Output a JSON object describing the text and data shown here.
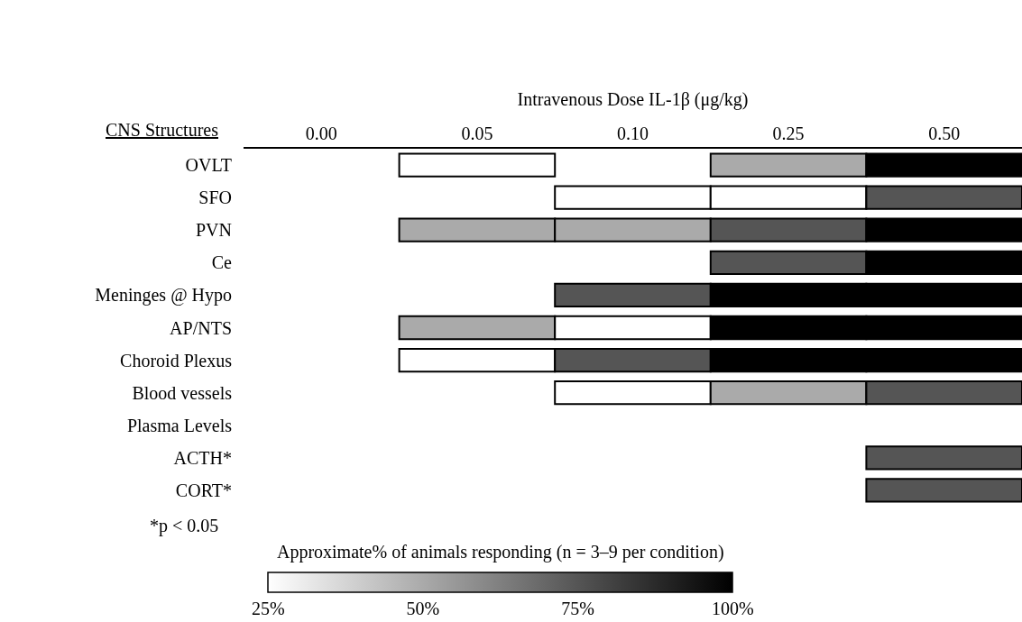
{
  "chart_data": {
    "type": "heatmap",
    "xlabel": "Intravenous Dose IL-1β (μg/kg)",
    "ylabel": "CNS Structures",
    "categories": [
      "0.00",
      "0.05",
      "0.10",
      "0.25",
      "0.50"
    ],
    "y_categories": [
      "OVLT",
      "SFO",
      "PVN",
      "Ce",
      "Meninges @ Hypo",
      "AP/NTS",
      "Choroid Plexus",
      "Blood vessels",
      "Plasma Levels",
      "ACTH*",
      "CORT*"
    ],
    "cells": [
      [
        null,
        25,
        null,
        50,
        100
      ],
      [
        null,
        null,
        25,
        25,
        75
      ],
      [
        null,
        50,
        50,
        75,
        100
      ],
      [
        null,
        null,
        null,
        75,
        100
      ],
      [
        null,
        null,
        75,
        100,
        100
      ],
      [
        null,
        50,
        25,
        100,
        100
      ],
      [
        null,
        25,
        75,
        100,
        100
      ],
      [
        null,
        null,
        25,
        50,
        75
      ],
      [
        null,
        null,
        null,
        null,
        null
      ],
      [
        null,
        null,
        null,
        null,
        75
      ],
      [
        null,
        null,
        null,
        null,
        75
      ]
    ],
    "clabel": "Approximate% of animals responding (n = 3–9 per condition)",
    "clim": [
      25,
      100
    ],
    "cticks": [
      {
        "value": 25,
        "label": "25%"
      },
      {
        "value": 50,
        "label": "50%"
      },
      {
        "value": 75,
        "label": "75%"
      },
      {
        "value": 100,
        "label": "100%"
      }
    ],
    "annotations": [
      "*p < 0.05"
    ]
  }
}
